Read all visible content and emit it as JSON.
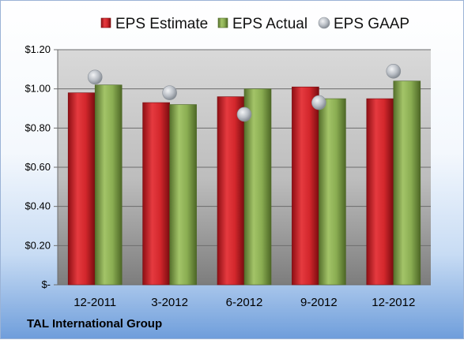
{
  "company": "TAL International Group",
  "colors": {
    "estimate": "#c81e24",
    "actual": "#7fa04a",
    "gaap": "#b8bdc4"
  },
  "chart_data": {
    "type": "bar",
    "categories": [
      "12-2011",
      "3-2012",
      "6-2012",
      "9-2012",
      "12-2012"
    ],
    "series": [
      {
        "name": "EPS Estimate",
        "values": [
          0.98,
          0.93,
          0.96,
          1.01,
          0.95
        ]
      },
      {
        "name": "EPS Actual",
        "values": [
          1.02,
          0.92,
          1.0,
          0.95,
          1.04
        ]
      },
      {
        "name": "EPS GAAP",
        "values": [
          1.06,
          0.98,
          0.87,
          0.93,
          1.09
        ],
        "marker": "circle"
      }
    ],
    "ylim": [
      0,
      1.2
    ],
    "y_ticks": [
      0,
      0.2,
      0.4,
      0.6,
      0.8,
      1.0,
      1.2
    ],
    "y_tick_labels": [
      "$-",
      "$0.20",
      "$0.40",
      "$0.60",
      "$0.80",
      "$1.00",
      "$1.20"
    ],
    "legend_position": "top",
    "grid": true
  }
}
